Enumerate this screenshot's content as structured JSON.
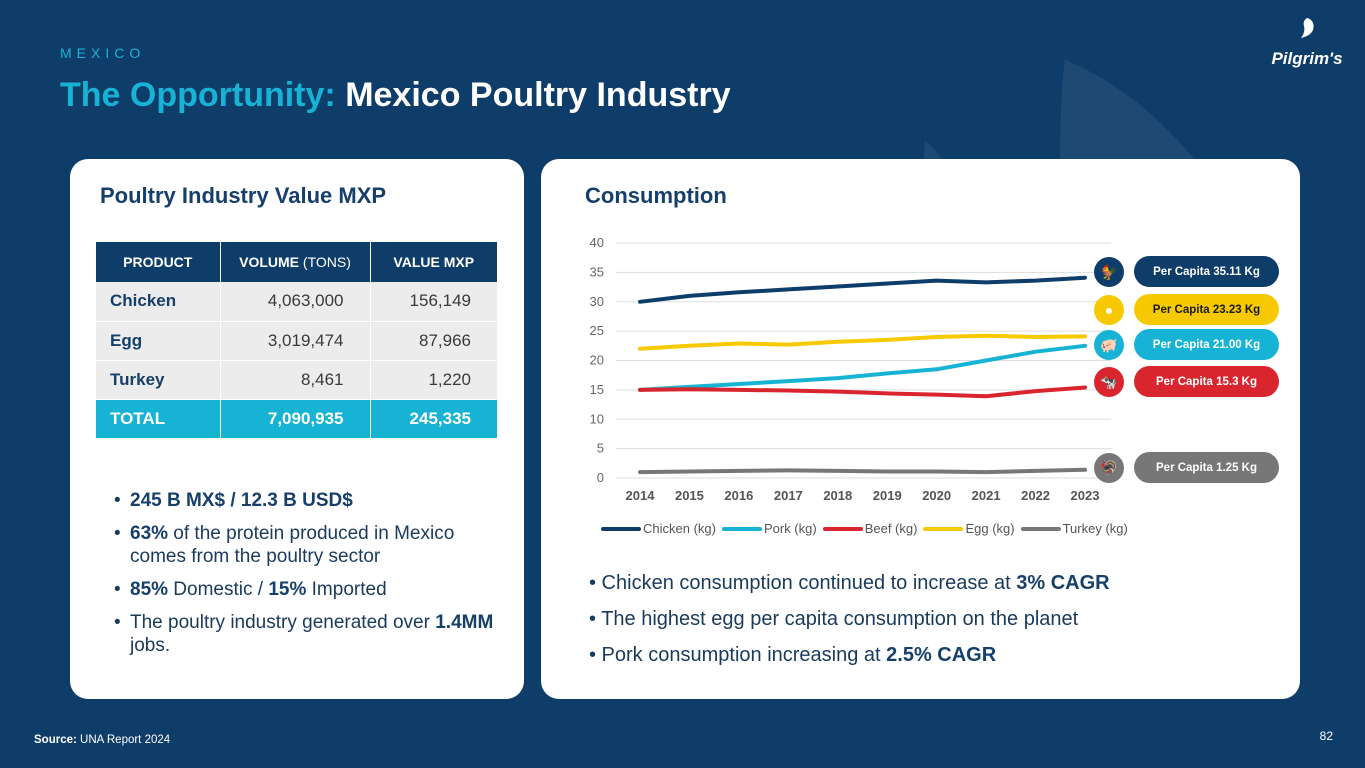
{
  "header": {
    "eyebrow": "MEXICO",
    "title_accent": "The Opportunity:",
    "title_rest": " Mexico Poultry Industry",
    "logo": "Pilgrim's"
  },
  "left_card": {
    "title": "Poultry Industry Value MXP",
    "table": {
      "headers": [
        "PRODUCT",
        "VOLUME",
        "(TONS)",
        "VALUE MXP"
      ],
      "rows": [
        {
          "product": "Chicken",
          "volume": "4,063,000",
          "value": "156,149"
        },
        {
          "product": "Egg",
          "volume": "3,019,474",
          "value": "87,966"
        },
        {
          "product": "Turkey",
          "volume": "8,461",
          "value": "1,220"
        }
      ],
      "total": {
        "product": "TOTAL",
        "volume": "7,090,935",
        "value": "245,335"
      }
    },
    "bullets": {
      "b1": "245 B MX$ / 12.3 B USD$",
      "b2_bold": "63%",
      "b2_text": " of the protein produced in Mexico comes from the poultry sector",
      "b3_bold1": "85%",
      "b3_text1": " Domestic / ",
      "b3_bold2": "15%",
      "b3_text2": " Imported",
      "b4_text": "The poultry industry generated over ",
      "b4_bold": "1.4MM",
      "b4_text2": " jobs."
    }
  },
  "right_card": {
    "title": "Consumption",
    "bullets": {
      "b1_text": "• Chicken consumption continued to increase at ",
      "b1_bold": "3% CAGR",
      "b2_text": "• The highest egg per capita consumption on the planet",
      "b3_text": "•  Pork consumption increasing at ",
      "b3_bold": "2.5% CAGR"
    },
    "per_capita": [
      {
        "label": "Per Capita 35.11 Kg",
        "color": "#0f3d6a",
        "text_color": "#ffffff",
        "icon": "chicken-icon",
        "glyph": "🐓"
      },
      {
        "label": "Per Capita 23.23 Kg",
        "color": "#f7c900",
        "text_color": "#1a1a1a",
        "icon": "egg-icon",
        "glyph": "●"
      },
      {
        "label": "Per Capita 21.00 Kg",
        "color": "#17b3d5",
        "text_color": "#ffffff",
        "icon": "pig-icon",
        "glyph": "🐖"
      },
      {
        "label": "Per Capita 15.3 Kg",
        "color": "#d9262e",
        "text_color": "#ffffff",
        "icon": "cow-icon",
        "glyph": "🐄"
      },
      {
        "label": "Per Capita  1.25 Kg",
        "color": "#777777",
        "text_color": "#ffffff",
        "icon": "turkey-icon",
        "glyph": "🦃"
      }
    ]
  },
  "chart_data": {
    "type": "line",
    "title": "Consumption",
    "x": [
      "2014",
      "2015",
      "2016",
      "2017",
      "2018",
      "2019",
      "2020",
      "2021",
      "2022",
      "2023"
    ],
    "ylim": [
      0,
      40
    ],
    "yticks": [
      0,
      5,
      10,
      15,
      20,
      25,
      30,
      35,
      40
    ],
    "grid": true,
    "legend_position": "bottom",
    "series": [
      {
        "name": "Chicken (kg)",
        "color": "#0f3d6a",
        "values": [
          30.0,
          31.0,
          31.6,
          32.1,
          32.6,
          33.1,
          33.6,
          33.3,
          33.6,
          34.1
        ]
      },
      {
        "name": "Pork (kg)",
        "color": "#17b3d5",
        "values": [
          15.0,
          15.5,
          16.0,
          16.5,
          17.0,
          17.8,
          18.5,
          20.0,
          21.5,
          22.5
        ]
      },
      {
        "name": "Beef (kg)",
        "color": "#d9262e",
        "values": [
          15.0,
          15.1,
          15.0,
          14.9,
          14.7,
          14.4,
          14.2,
          13.9,
          14.8,
          15.4
        ]
      },
      {
        "name": "Egg (kg)",
        "color": "#f7c900",
        "values": [
          22.0,
          22.5,
          22.9,
          22.7,
          23.2,
          23.5,
          24.0,
          24.2,
          24.0,
          24.1
        ]
      },
      {
        "name": "Turkey (kg)",
        "color": "#777777",
        "values": [
          1.0,
          1.1,
          1.2,
          1.3,
          1.2,
          1.1,
          1.1,
          1.0,
          1.2,
          1.4
        ]
      }
    ]
  },
  "footer": {
    "source_label": "Source:",
    "source_text": " UNA Report 2024",
    "page_number": "82"
  }
}
